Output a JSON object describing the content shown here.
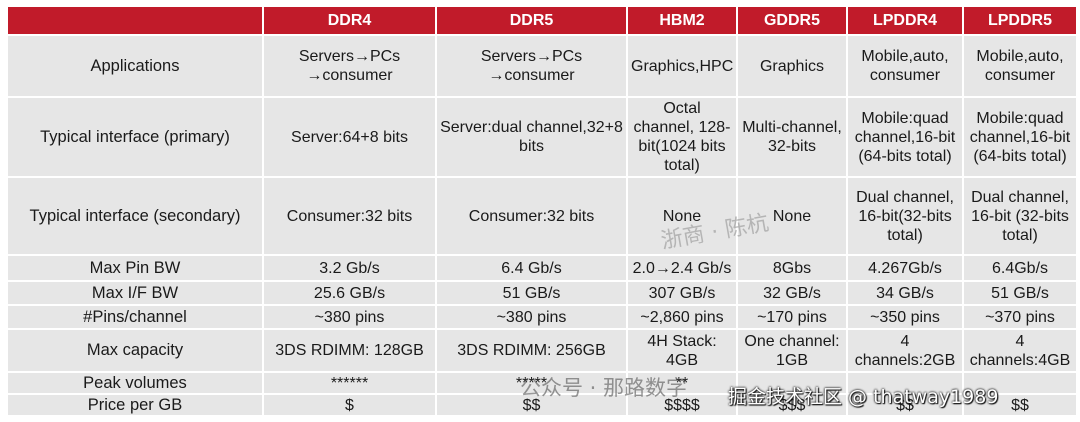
{
  "headers": [
    "",
    "DDR4",
    "DDR5",
    "HBM2",
    "GDDR5",
    "LPDDR4",
    "LPDDR5"
  ],
  "rows": [
    {
      "label": "Applications",
      "cells": [
        "Servers→PCs →consumer",
        "Servers→PCs →consumer",
        "Graphics,HPC",
        "Graphics",
        "Mobile,auto, consumer",
        "Mobile,auto, consumer"
      ]
    },
    {
      "label": "Typical interface (primary)",
      "cells": [
        "Server:64+8 bits",
        "Server:dual channel,32+8 bits",
        "Octal channel, 128-bit(1024 bits total)",
        "Multi-channel, 32-bits",
        "Mobile:quad channel,16-bit (64-bits total)",
        "Mobile:quad channel,16-bit (64-bits total)"
      ]
    },
    {
      "label": "Typical interface (secondary)",
      "cells": [
        "Consumer:32 bits",
        "Consumer:32 bits",
        "None",
        "None",
        "Dual channel, 16-bit(32-bits total)",
        "Dual channel, 16-bit (32-bits total)"
      ]
    },
    {
      "label": "Max Pin BW",
      "cells": [
        "3.2 Gb/s",
        "6.4 Gb/s",
        "2.0→2.4 Gb/s",
        "8Gbs",
        "4.267Gb/s",
        "6.4Gb/s"
      ]
    },
    {
      "label": "Max I/F BW",
      "cells": [
        "25.6 GB/s",
        "51 GB/s",
        "307 GB/s",
        "32 GB/s",
        "34 GB/s",
        "51 GB/s"
      ]
    },
    {
      "label": "#Pins/channel",
      "cells": [
        "~380 pins",
        "~380 pins",
        "~2,860 pins",
        "~170 pins",
        "~350 pins",
        "~370 pins"
      ]
    },
    {
      "label": "Max capacity",
      "cells": [
        "3DS RDIMM: 128GB",
        "3DS RDIMM: 256GB",
        "4H Stack: 4GB",
        "One channel: 1GB",
        "4 channels:2GB",
        "4 channels:4GB"
      ]
    },
    {
      "label": "Peak volumes",
      "cells": [
        "******",
        "*****",
        "**",
        "",
        "",
        ""
      ]
    },
    {
      "label": "Price per GB",
      "cells": [
        "$",
        "$$",
        "$$$$",
        "$$$",
        "$$",
        "$$"
      ]
    }
  ],
  "watermarks": {
    "center": "浙商 · 陈杭",
    "bottom": "公众号 · 那路数字",
    "corner": "掘金技术社区 @ thatway1989"
  }
}
